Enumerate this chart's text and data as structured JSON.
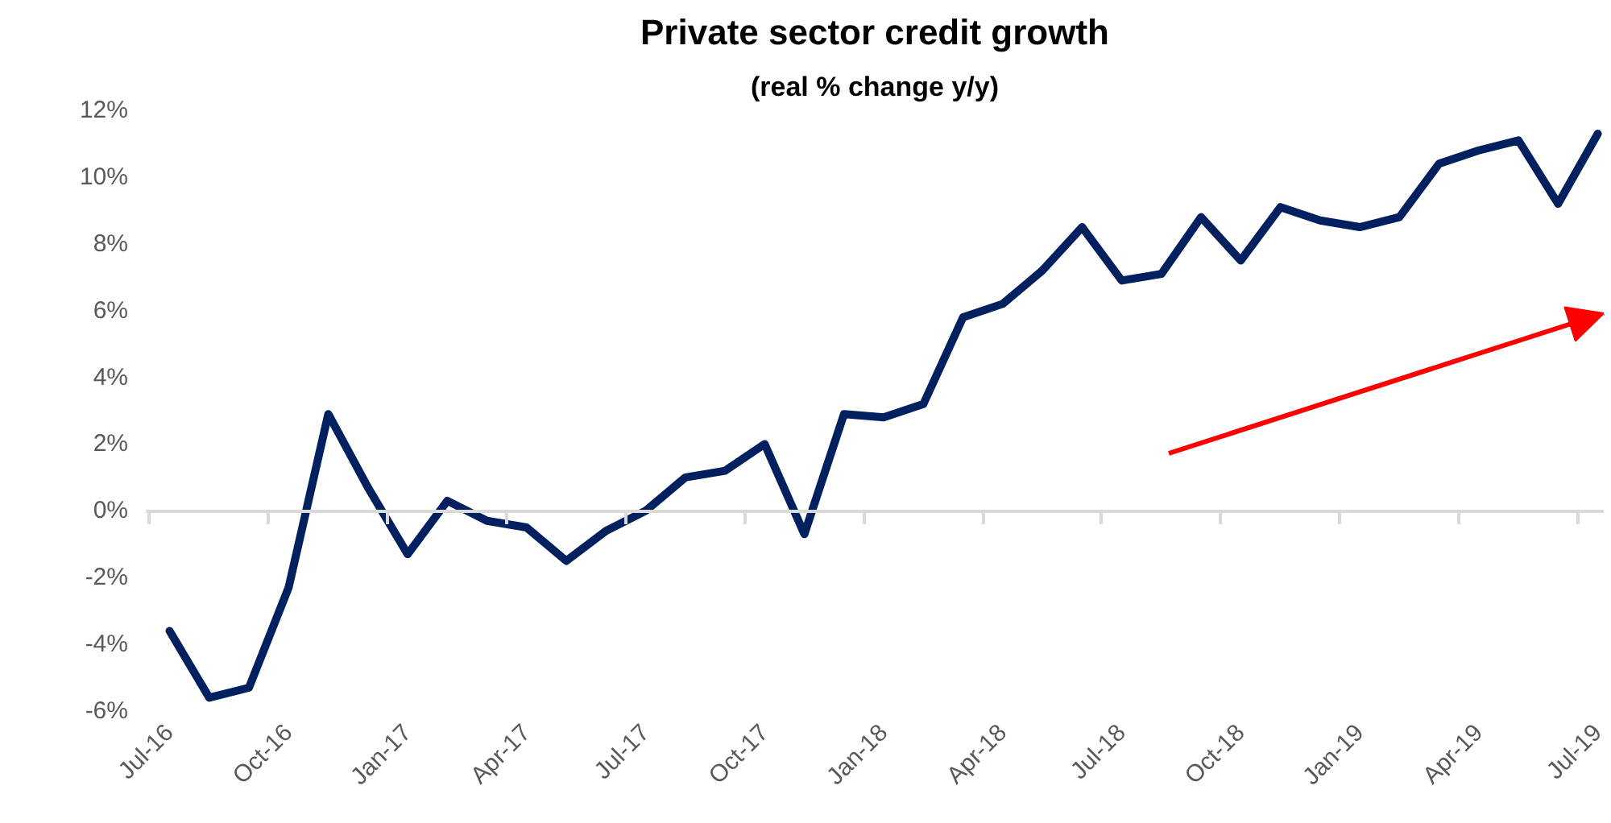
{
  "chart_data": {
    "type": "line",
    "title": "Private sector credit growth",
    "subtitle": "(real % change y/y)",
    "categories": [
      "Jul-16",
      null,
      null,
      "Oct-16",
      null,
      null,
      "Jan-17",
      null,
      null,
      "Apr-17",
      null,
      null,
      "Jul-17",
      null,
      null,
      "Oct-17",
      null,
      null,
      "Jan-18",
      null,
      null,
      "Apr-18",
      null,
      null,
      "Jul-18",
      null,
      null,
      "Oct-18",
      null,
      null,
      "Jan-19",
      null,
      null,
      "Apr-19",
      null,
      null,
      "Jul-19"
    ],
    "series": [
      {
        "color": "#002060",
        "values": [
          -3.6,
          -5.6,
          -5.3,
          -2.3,
          2.9,
          0.7,
          -1.3,
          0.3,
          -0.3,
          -0.5,
          -1.5,
          -0.6,
          0.0,
          1.0,
          1.2,
          2.0,
          -0.7,
          2.9,
          2.8,
          3.2,
          5.8,
          6.2,
          7.2,
          8.5,
          6.9,
          7.1,
          8.8,
          7.5,
          9.1,
          8.7,
          8.5,
          8.8,
          10.4,
          10.8,
          11.1,
          9.2,
          11.3
        ]
      }
    ],
    "ylim": [
      -6,
      12
    ],
    "yticks": [
      {
        "value": -6,
        "label": "-6%"
      },
      {
        "value": -4,
        "label": "-4%"
      },
      {
        "value": -2,
        "label": "-2%"
      },
      {
        "value": 0,
        "label": "0%"
      },
      {
        "value": 2,
        "label": "2%"
      },
      {
        "value": 4,
        "label": "4%"
      },
      {
        "value": 6,
        "label": "6%"
      },
      {
        "value": 8,
        "label": "8%"
      },
      {
        "value": 10,
        "label": "10%"
      },
      {
        "value": 12,
        "label": "12%"
      }
    ],
    "marker": "none",
    "line_style": "solid"
  }
}
